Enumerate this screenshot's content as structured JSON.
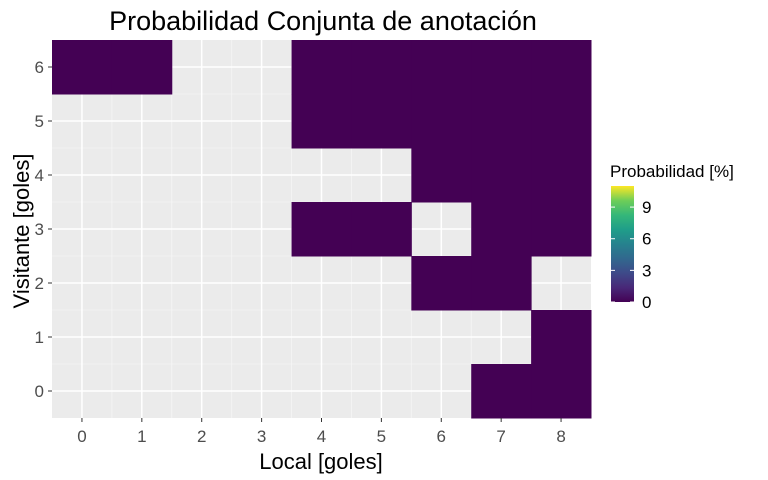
{
  "chart_data": {
    "type": "heatmap",
    "title": "Probabilidad Conjunta de anotación",
    "xlabel": "Local [goles]",
    "ylabel": "Visitante [goles]",
    "x_ticks": [
      "0",
      "1",
      "2",
      "3",
      "4",
      "5",
      "6",
      "7",
      "8"
    ],
    "y_ticks": [
      "0",
      "1",
      "2",
      "3",
      "4",
      "5",
      "6"
    ],
    "xlim": [
      -0.5,
      8.5
    ],
    "ylim": [
      -0.5,
      6.5
    ],
    "grid": true,
    "legend": {
      "title": "Probabilidad [%]",
      "ticks": [
        "0",
        "3",
        "6",
        "9"
      ],
      "placement": "right",
      "range": [
        0,
        11
      ],
      "colormap": "viridis"
    },
    "cells": [
      {
        "x": 0,
        "y": 6,
        "value": 0
      },
      {
        "x": 1,
        "y": 6,
        "value": 0
      },
      {
        "x": 4,
        "y": 6,
        "value": 0
      },
      {
        "x": 5,
        "y": 6,
        "value": 0
      },
      {
        "x": 6,
        "y": 6,
        "value": 0
      },
      {
        "x": 7,
        "y": 6,
        "value": 0
      },
      {
        "x": 8,
        "y": 6,
        "value": 0
      },
      {
        "x": 4,
        "y": 5,
        "value": 0
      },
      {
        "x": 5,
        "y": 5,
        "value": 0
      },
      {
        "x": 6,
        "y": 5,
        "value": 0
      },
      {
        "x": 7,
        "y": 5,
        "value": 0
      },
      {
        "x": 8,
        "y": 5,
        "value": 0
      },
      {
        "x": 6,
        "y": 4,
        "value": 0
      },
      {
        "x": 7,
        "y": 4,
        "value": 0
      },
      {
        "x": 8,
        "y": 4,
        "value": 0
      },
      {
        "x": 4,
        "y": 3,
        "value": 0
      },
      {
        "x": 5,
        "y": 3,
        "value": 0
      },
      {
        "x": 7,
        "y": 3,
        "value": 0
      },
      {
        "x": 8,
        "y": 3,
        "value": 0
      },
      {
        "x": 6,
        "y": 2,
        "value": 0
      },
      {
        "x": 7,
        "y": 2,
        "value": 0
      },
      {
        "x": 8,
        "y": 1,
        "value": 0
      },
      {
        "x": 7,
        "y": 0,
        "value": 0
      },
      {
        "x": 8,
        "y": 0,
        "value": 0
      }
    ]
  }
}
